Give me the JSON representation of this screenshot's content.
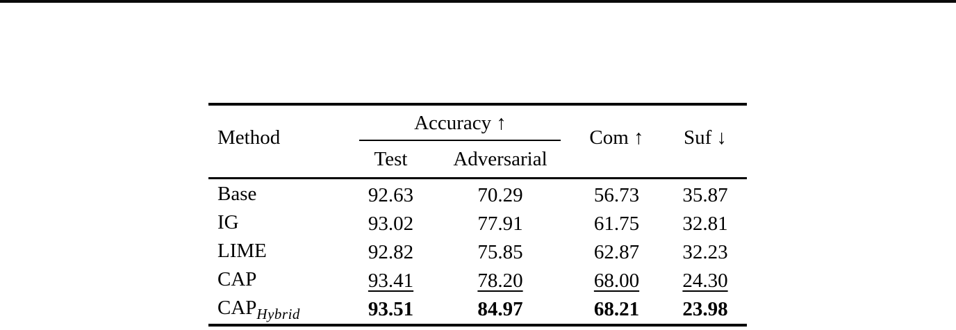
{
  "page": {
    "background": "#ffffff",
    "top_rule_color": "#0a0a0a",
    "text_color": "#000000"
  },
  "table": {
    "columns": {
      "method": "Method",
      "accuracy_group": "Accuracy ↑",
      "accuracy_sub": [
        "Test",
        "Adversarial"
      ],
      "com": "Com ↑",
      "suf": "Suf ↓"
    },
    "rows": [
      {
        "method": "Base",
        "method_sub": "",
        "test": "92.63",
        "adversarial": "70.29",
        "com": "56.73",
        "suf": "35.87",
        "style": "normal"
      },
      {
        "method": "IG",
        "method_sub": "",
        "test": "93.02",
        "adversarial": "77.91",
        "com": "61.75",
        "suf": "32.81",
        "style": "normal"
      },
      {
        "method": "LIME",
        "method_sub": "",
        "test": "92.82",
        "adversarial": "75.85",
        "com": "62.87",
        "suf": "32.23",
        "style": "normal"
      },
      {
        "method": "CAP",
        "method_sub": "",
        "test": "93.41",
        "adversarial": "78.20",
        "com": "68.00",
        "suf": "24.30",
        "style": "underline"
      },
      {
        "method": "CAP",
        "method_sub": "Hybrid",
        "test": "93.51",
        "adversarial": "84.97",
        "com": "68.21",
        "suf": "23.98",
        "style": "bold"
      }
    ]
  }
}
